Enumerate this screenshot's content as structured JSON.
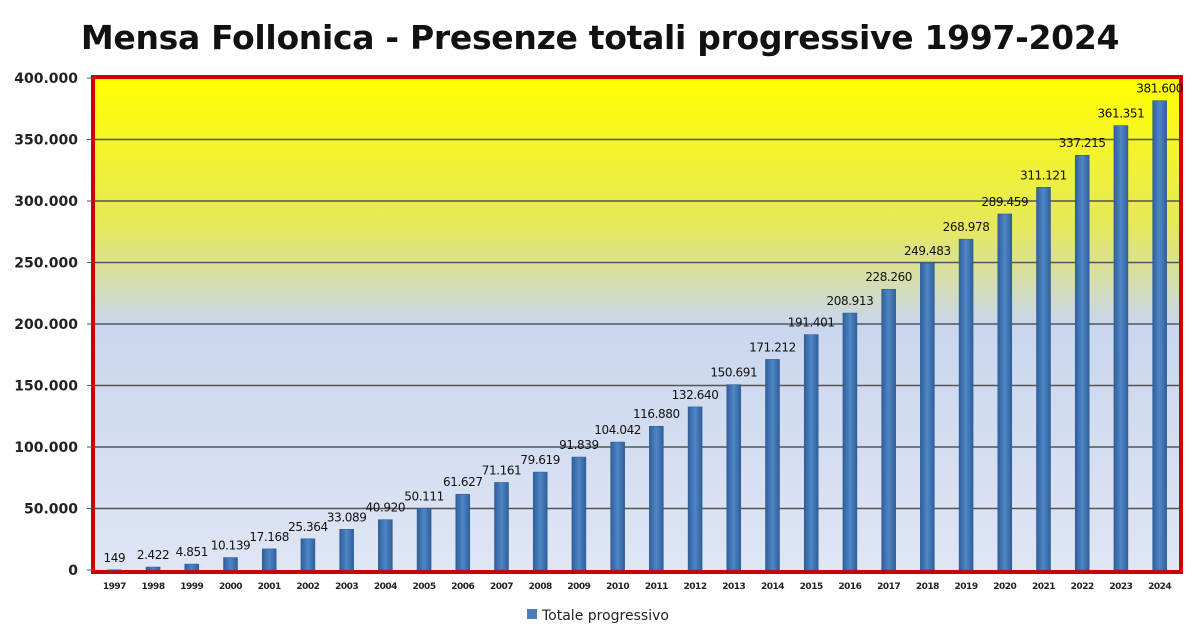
{
  "chart_data": {
    "type": "bar",
    "title": "Mensa Follonica - Presenze totali progressive 1997-2024",
    "xlabel": "",
    "ylabel": "",
    "ylim": [
      0,
      400000
    ],
    "yticks": [
      0,
      50000,
      100000,
      150000,
      200000,
      250000,
      300000,
      350000,
      400000
    ],
    "ytick_labels": [
      "0",
      "50.000",
      "100.000",
      "150.000",
      "200.000",
      "250.000",
      "300.000",
      "350.000",
      "400.000"
    ],
    "grid": true,
    "legend_position": "bottom",
    "categories": [
      "1997",
      "1998",
      "1999",
      "2000",
      "2001",
      "2002",
      "2003",
      "2004",
      "2005",
      "2006",
      "2007",
      "2008",
      "2009",
      "2010",
      "2011",
      "2012",
      "2013",
      "2014",
      "2015",
      "2016",
      "2017",
      "2018",
      "2019",
      "2020",
      "2021",
      "2022",
      "2023",
      "2024"
    ],
    "series": [
      {
        "name": "Totale progressivo",
        "color": "#4a7ebb",
        "values": [
          149,
          2422,
          4851,
          10139,
          17168,
          25364,
          33089,
          40920,
          50111,
          61627,
          71161,
          79619,
          91839,
          104042,
          116880,
          132640,
          150691,
          171212,
          191401,
          208913,
          228260,
          249483,
          268978,
          289459,
          311121,
          337215,
          361351,
          381600
        ],
        "labels": [
          "149",
          "2.422",
          "4.851",
          "10.139",
          "17.168",
          "25.364",
          "33.089",
          "40.920",
          "50.111",
          "61.627",
          "71.161",
          "79.619",
          "91.839",
          "104.042",
          "116.880",
          "132.640",
          "150.691",
          "171.212",
          "191.401",
          "208.913",
          "228.260",
          "249.483",
          "268.978",
          "289.459",
          "311.121",
          "337.215",
          "361.351",
          "381.600"
        ]
      }
    ]
  }
}
